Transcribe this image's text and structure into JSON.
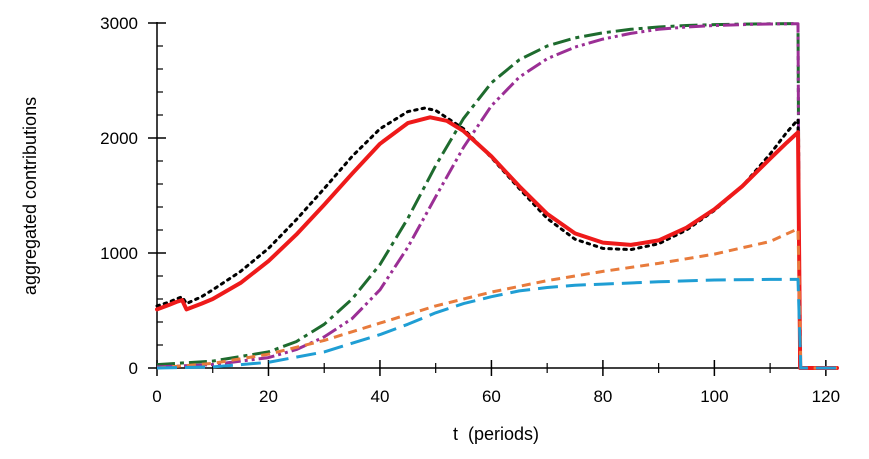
{
  "chart_data": {
    "type": "line",
    "title": "",
    "xlabel": "t  (periods)",
    "ylabel": "aggregated contributions",
    "xlim": [
      0,
      122
    ],
    "ylim": [
      0,
      3000
    ],
    "x_ticks": [
      0,
      20,
      40,
      60,
      80,
      100,
      120
    ],
    "y_ticks": [
      0,
      1000,
      2000,
      3000
    ],
    "grid": false,
    "legend": "none",
    "series": [
      {
        "name": "green dash-dot",
        "color": "#1e6b2e",
        "dash": "18 5 4 5",
        "width": 3,
        "x": [
          0,
          10,
          20,
          25,
          30,
          35,
          40,
          45,
          50,
          55,
          60,
          65,
          70,
          75,
          80,
          85,
          90,
          95,
          100,
          105,
          110,
          115,
          115.3,
          116,
          122
        ],
        "y": [
          30,
          60,
          140,
          230,
          380,
          600,
          900,
          1300,
          1760,
          2170,
          2480,
          2680,
          2800,
          2870,
          2915,
          2945,
          2965,
          2978,
          2986,
          2990,
          2993,
          2995,
          0,
          0,
          0
        ]
      },
      {
        "name": "purple dash-dot-dot",
        "color": "#9b2f95",
        "dash": "16 4 3 4 3 4",
        "width": 3,
        "x": [
          0,
          10,
          20,
          25,
          30,
          35,
          40,
          45,
          50,
          55,
          60,
          65,
          70,
          75,
          80,
          85,
          90,
          95,
          100,
          105,
          110,
          115,
          115.3,
          116,
          122
        ],
        "y": [
          10,
          30,
          90,
          160,
          270,
          430,
          680,
          1050,
          1490,
          1920,
          2280,
          2530,
          2690,
          2790,
          2860,
          2910,
          2945,
          2965,
          2978,
          2986,
          2991,
          2994,
          0,
          0,
          0
        ]
      },
      {
        "name": "black dotted",
        "color": "#000000",
        "dash": "2.5 5",
        "width": 3,
        "x": [
          0,
          2,
          3.5,
          4.5,
          5.3,
          8,
          10,
          15,
          20,
          25,
          30,
          35,
          40,
          45,
          48,
          50,
          55,
          60,
          65,
          70,
          75,
          80,
          85,
          90,
          95,
          100,
          105,
          110,
          113,
          115,
          115.4,
          116,
          122
        ],
        "y": [
          540,
          570,
          600,
          620,
          560,
          620,
          680,
          840,
          1040,
          1290,
          1560,
          1840,
          2080,
          2230,
          2260,
          2240,
          2080,
          1830,
          1560,
          1300,
          1120,
          1040,
          1030,
          1080,
          1200,
          1370,
          1580,
          1860,
          2050,
          2160,
          0,
          0,
          0
        ]
      },
      {
        "name": "red solid",
        "color": "#ee1a1a",
        "dash": "",
        "width": 4,
        "x": [
          0,
          2,
          3.5,
          4.5,
          5.3,
          8,
          10,
          15,
          20,
          25,
          30,
          35,
          40,
          45,
          49,
          52,
          55,
          60,
          65,
          70,
          75,
          80,
          85,
          90,
          95,
          100,
          105,
          110,
          113,
          115,
          115.4,
          116,
          122
        ],
        "y": [
          510,
          545,
          575,
          590,
          510,
          560,
          600,
          740,
          930,
          1160,
          1420,
          1690,
          1950,
          2130,
          2180,
          2150,
          2060,
          1840,
          1580,
          1340,
          1170,
          1090,
          1070,
          1110,
          1220,
          1380,
          1580,
          1820,
          1960,
          2050,
          0,
          0,
          0
        ]
      },
      {
        "name": "orange dashed",
        "color": "#e87b3c",
        "dash": "9 6",
        "width": 3,
        "x": [
          0,
          10,
          20,
          30,
          40,
          50,
          60,
          70,
          80,
          90,
          100,
          110,
          115,
          115.5,
          116,
          122
        ],
        "y": [
          0,
          40,
          120,
          240,
          390,
          540,
          660,
          760,
          840,
          910,
          990,
          1100,
          1210,
          0,
          0,
          0
        ]
      },
      {
        "name": "blue long dashed",
        "color": "#1f9ed4",
        "dash": "20 8",
        "width": 3,
        "x": [
          0,
          10,
          20,
          30,
          40,
          45,
          50,
          55,
          60,
          65,
          70,
          75,
          80,
          90,
          100,
          110,
          115,
          115.5,
          116,
          122
        ],
        "y": [
          0,
          10,
          50,
          140,
          290,
          380,
          480,
          560,
          620,
          670,
          700,
          720,
          730,
          750,
          765,
          770,
          770,
          0,
          0,
          0
        ]
      }
    ]
  }
}
